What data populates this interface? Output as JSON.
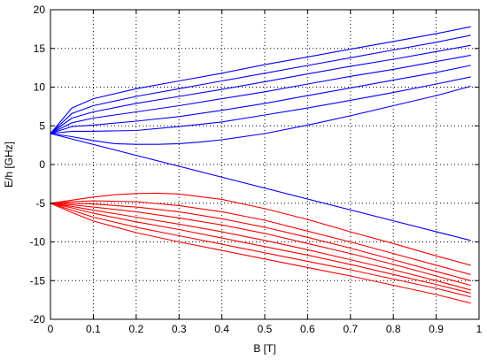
{
  "chart_data": {
    "type": "line",
    "title": "",
    "xlabel": "B [T]",
    "ylabel": "E/h [GHz]",
    "xlim": [
      0,
      1
    ],
    "ylim": [
      -20,
      20
    ],
    "x_ticks": [
      "0",
      "0.1",
      "0.2",
      "0.3",
      "0.4",
      "0.5",
      "0.6",
      "0.7",
      "0.8",
      "0.9",
      "1"
    ],
    "y_ticks": [
      "-20",
      "-15",
      "-10",
      "-5",
      "0",
      "5",
      "10",
      "15",
      "20"
    ],
    "grid": true,
    "legend": "none",
    "colors": {
      "upper": "#0000ff",
      "lower": "#ff0000",
      "grid": "#000000",
      "axes": "#000000"
    },
    "series": [
      {
        "group": "upper",
        "x": [
          0,
          0.05,
          0.1,
          0.2,
          0.3,
          0.4,
          0.5,
          0.6,
          0.7,
          0.8,
          0.9,
          0.98
        ],
        "y": [
          4,
          7.3,
          8.5,
          9.8,
          10.8,
          11.8,
          12.9,
          13.9,
          14.9,
          15.9,
          16.9,
          17.8
        ]
      },
      {
        "group": "upper",
        "x": [
          0,
          0.05,
          0.1,
          0.2,
          0.3,
          0.4,
          0.5,
          0.6,
          0.7,
          0.8,
          0.9,
          0.98
        ],
        "y": [
          4,
          6.6,
          7.6,
          8.8,
          9.8,
          10.8,
          11.8,
          12.8,
          13.8,
          14.8,
          15.8,
          16.7
        ]
      },
      {
        "group": "upper",
        "x": [
          0,
          0.05,
          0.1,
          0.2,
          0.3,
          0.4,
          0.5,
          0.6,
          0.7,
          0.8,
          0.9,
          0.98
        ],
        "y": [
          4,
          6.0,
          6.8,
          7.9,
          8.8,
          9.7,
          10.7,
          11.7,
          12.7,
          13.6,
          14.6,
          15.4
        ]
      },
      {
        "group": "upper",
        "x": [
          0,
          0.05,
          0.1,
          0.2,
          0.3,
          0.4,
          0.5,
          0.6,
          0.7,
          0.8,
          0.9,
          0.98
        ],
        "y": [
          4,
          5.4,
          6.0,
          6.8,
          7.6,
          8.5,
          9.4,
          10.4,
          11.4,
          12.3,
          13.3,
          14.1
        ]
      },
      {
        "group": "upper",
        "x": [
          0,
          0.05,
          0.1,
          0.2,
          0.3,
          0.4,
          0.5,
          0.6,
          0.7,
          0.8,
          0.9,
          0.98
        ],
        "y": [
          4,
          4.9,
          5.1,
          5.6,
          6.2,
          7.0,
          7.9,
          8.9,
          9.9,
          10.9,
          11.9,
          12.8
        ]
      },
      {
        "group": "upper",
        "x": [
          0,
          0.05,
          0.1,
          0.2,
          0.3,
          0.4,
          0.5,
          0.6,
          0.7,
          0.8,
          0.9,
          0.98
        ],
        "y": [
          4,
          4.3,
          4.3,
          4.4,
          4.9,
          5.5,
          6.4,
          7.3,
          8.3,
          9.3,
          10.4,
          11.3
        ]
      },
      {
        "group": "upper",
        "x": [
          0,
          0.05,
          0.1,
          0.15,
          0.2,
          0.25,
          0.3,
          0.35,
          0.4,
          0.5,
          0.6,
          0.7,
          0.8,
          0.9,
          0.98
        ],
        "y": [
          4,
          3.6,
          3.1,
          2.7,
          2.6,
          2.6,
          2.7,
          2.9,
          3.2,
          4.0,
          5.1,
          6.3,
          7.6,
          8.9,
          10.1
        ]
      },
      {
        "group": "upper",
        "x": [
          0,
          0.98
        ],
        "y": [
          4,
          -9.8
        ]
      },
      {
        "group": "lower",
        "x": [
          0,
          0.05,
          0.1,
          0.15,
          0.2,
          0.25,
          0.3,
          0.4,
          0.5,
          0.6,
          0.7,
          0.8,
          0.9,
          0.98
        ],
        "y": [
          -5,
          -4.6,
          -4.2,
          -3.9,
          -3.75,
          -3.7,
          -3.8,
          -4.5,
          -5.7,
          -7.1,
          -8.7,
          -10.2,
          -11.8,
          -13.0
        ]
      },
      {
        "group": "lower",
        "x": [
          0,
          0.05,
          0.1,
          0.2,
          0.3,
          0.4,
          0.5,
          0.6,
          0.7,
          0.8,
          0.9,
          0.98
        ],
        "y": [
          -5,
          -4.8,
          -4.7,
          -4.8,
          -5.3,
          -6.1,
          -7.2,
          -8.6,
          -10.0,
          -11.5,
          -13.0,
          -14.2
        ]
      },
      {
        "group": "lower",
        "x": [
          0,
          0.05,
          0.1,
          0.2,
          0.3,
          0.4,
          0.5,
          0.6,
          0.7,
          0.8,
          0.9,
          0.98
        ],
        "y": [
          -5,
          -5.0,
          -5.1,
          -5.5,
          -6.1,
          -7.0,
          -8.1,
          -9.4,
          -10.8,
          -12.3,
          -13.8,
          -15.0
        ]
      },
      {
        "group": "lower",
        "x": [
          0,
          0.05,
          0.1,
          0.2,
          0.3,
          0.4,
          0.5,
          0.6,
          0.7,
          0.8,
          0.9,
          0.98
        ],
        "y": [
          -5,
          -5.2,
          -5.5,
          -6.1,
          -6.9,
          -7.8,
          -8.9,
          -10.2,
          -11.5,
          -12.9,
          -14.4,
          -15.6
        ]
      },
      {
        "group": "lower",
        "x": [
          0,
          0.05,
          0.1,
          0.2,
          0.3,
          0.4,
          0.5,
          0.6,
          0.7,
          0.8,
          0.9,
          0.98
        ],
        "y": [
          -5,
          -5.4,
          -5.9,
          -6.8,
          -7.7,
          -8.7,
          -9.8,
          -11.0,
          -12.3,
          -13.6,
          -15.0,
          -16.2
        ]
      },
      {
        "group": "lower",
        "x": [
          0,
          0.05,
          0.1,
          0.2,
          0.3,
          0.4,
          0.5,
          0.6,
          0.7,
          0.8,
          0.9,
          0.98
        ],
        "y": [
          -5,
          -5.6,
          -6.3,
          -7.4,
          -8.4,
          -9.5,
          -10.6,
          -11.7,
          -12.9,
          -14.2,
          -15.5,
          -16.6
        ]
      },
      {
        "group": "lower",
        "x": [
          0,
          0.05,
          0.1,
          0.2,
          0.3,
          0.4,
          0.5,
          0.6,
          0.7,
          0.8,
          0.9,
          0.98
        ],
        "y": [
          -5,
          -5.9,
          -6.8,
          -8.1,
          -9.2,
          -10.3,
          -11.4,
          -12.5,
          -13.6,
          -14.8,
          -16.0,
          -17.1
        ]
      },
      {
        "group": "lower",
        "x": [
          0,
          0.05,
          0.1,
          0.2,
          0.3,
          0.4,
          0.5,
          0.6,
          0.7,
          0.8,
          0.9,
          0.98
        ],
        "y": [
          -5,
          -6.2,
          -7.3,
          -8.8,
          -10.0,
          -11.1,
          -12.2,
          -13.3,
          -14.4,
          -15.6,
          -16.8,
          -17.9
        ]
      }
    ]
  }
}
